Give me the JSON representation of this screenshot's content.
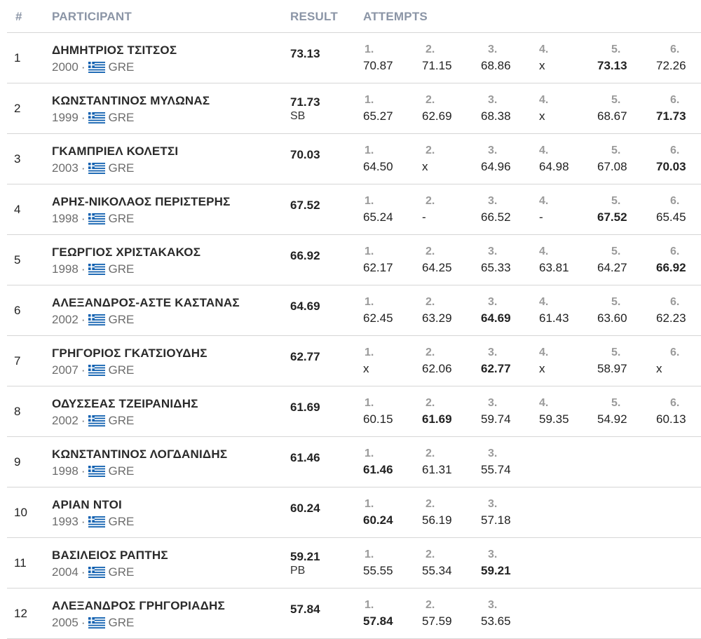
{
  "header": {
    "rank": "#",
    "participant": "PARTICIPANT",
    "result": "RESULT",
    "attempts": "ATTEMPTS"
  },
  "colors": {
    "header_text": "#8b95a6",
    "divider": "#d6d6d6",
    "flag_blue": "#0d5eaf"
  },
  "rows": [
    {
      "rank": "1",
      "name": "ΔΗΜΗΤΡΙΟΣ ΤΣΙΤΣΟΣ",
      "year": "2000",
      "sep": "·",
      "country": "GRE",
      "result": "73.13",
      "note": "",
      "attempts": [
        {
          "n": "1.",
          "v": "70.87",
          "best": false
        },
        {
          "n": "2.",
          "v": "71.15",
          "best": false
        },
        {
          "n": "3.",
          "v": "68.86",
          "best": false
        },
        {
          "n": "4.",
          "v": "x",
          "best": false
        },
        {
          "n": "5.",
          "v": "73.13",
          "best": true
        },
        {
          "n": "6.",
          "v": "72.26",
          "best": false
        }
      ]
    },
    {
      "rank": "2",
      "name": "ΚΩΝΣΤΑΝΤΙΝΟΣ ΜΥΛΩΝΑΣ",
      "year": "1999",
      "sep": "·",
      "country": "GRE",
      "result": "71.73",
      "note": "SB",
      "attempts": [
        {
          "n": "1.",
          "v": "65.27",
          "best": false
        },
        {
          "n": "2.",
          "v": "62.69",
          "best": false
        },
        {
          "n": "3.",
          "v": "68.38",
          "best": false
        },
        {
          "n": "4.",
          "v": "x",
          "best": false
        },
        {
          "n": "5.",
          "v": "68.67",
          "best": false
        },
        {
          "n": "6.",
          "v": "71.73",
          "best": true
        }
      ]
    },
    {
      "rank": "3",
      "name": "ΓΚΑΜΠΡΙΕΛ ΚΟΛΕΤΣΙ",
      "year": "2003",
      "sep": "·",
      "country": "GRE",
      "result": "70.03",
      "note": "",
      "attempts": [
        {
          "n": "1.",
          "v": "64.50",
          "best": false
        },
        {
          "n": "2.",
          "v": "x",
          "best": false
        },
        {
          "n": "3.",
          "v": "64.96",
          "best": false
        },
        {
          "n": "4.",
          "v": "64.98",
          "best": false
        },
        {
          "n": "5.",
          "v": "67.08",
          "best": false
        },
        {
          "n": "6.",
          "v": "70.03",
          "best": true
        }
      ]
    },
    {
      "rank": "4",
      "name": "ΑΡΗΣ-ΝΙΚΟΛΑΟΣ ΠΕΡΙΣΤΕΡΗΣ",
      "year": "1998",
      "sep": "·",
      "country": "GRE",
      "result": "67.52",
      "note": "",
      "attempts": [
        {
          "n": "1.",
          "v": "65.24",
          "best": false
        },
        {
          "n": "2.",
          "v": "-",
          "best": false
        },
        {
          "n": "3.",
          "v": "66.52",
          "best": false
        },
        {
          "n": "4.",
          "v": "-",
          "best": false
        },
        {
          "n": "5.",
          "v": "67.52",
          "best": true
        },
        {
          "n": "6.",
          "v": "65.45",
          "best": false
        }
      ]
    },
    {
      "rank": "5",
      "name": "ΓΕΩΡΓΙΟΣ ΧΡΙΣΤΑΚΑΚΟΣ",
      "year": "1998",
      "sep": "·",
      "country": "GRE",
      "result": "66.92",
      "note": "",
      "attempts": [
        {
          "n": "1.",
          "v": "62.17",
          "best": false
        },
        {
          "n": "2.",
          "v": "64.25",
          "best": false
        },
        {
          "n": "3.",
          "v": "65.33",
          "best": false
        },
        {
          "n": "4.",
          "v": "63.81",
          "best": false
        },
        {
          "n": "5.",
          "v": "64.27",
          "best": false
        },
        {
          "n": "6.",
          "v": "66.92",
          "best": true
        }
      ]
    },
    {
      "rank": "6",
      "name": "ΑΛΕΞΑΝΔΡΟΣ-ΑΣΤΕ ΚΑΣΤΑΝΑΣ",
      "year": "2002",
      "sep": "·",
      "country": "GRE",
      "result": "64.69",
      "note": "",
      "attempts": [
        {
          "n": "1.",
          "v": "62.45",
          "best": false
        },
        {
          "n": "2.",
          "v": "63.29",
          "best": false
        },
        {
          "n": "3.",
          "v": "64.69",
          "best": true
        },
        {
          "n": "4.",
          "v": "61.43",
          "best": false
        },
        {
          "n": "5.",
          "v": "63.60",
          "best": false
        },
        {
          "n": "6.",
          "v": "62.23",
          "best": false
        }
      ]
    },
    {
      "rank": "7",
      "name": "ΓΡΗΓΟΡΙΟΣ ΓΚΑΤΣΙΟΥΔΗΣ",
      "year": "2007",
      "sep": "·",
      "country": "GRE",
      "result": "62.77",
      "note": "",
      "attempts": [
        {
          "n": "1.",
          "v": "x",
          "best": false
        },
        {
          "n": "2.",
          "v": "62.06",
          "best": false
        },
        {
          "n": "3.",
          "v": "62.77",
          "best": true
        },
        {
          "n": "4.",
          "v": "x",
          "best": false
        },
        {
          "n": "5.",
          "v": "58.97",
          "best": false
        },
        {
          "n": "6.",
          "v": "x",
          "best": false
        }
      ]
    },
    {
      "rank": "8",
      "name": "ΟΔΥΣΣΕΑΣ ΤΖΕΙΡΑΝΙΔΗΣ",
      "year": "2002",
      "sep": "·",
      "country": "GRE",
      "result": "61.69",
      "note": "",
      "attempts": [
        {
          "n": "1.",
          "v": "60.15",
          "best": false
        },
        {
          "n": "2.",
          "v": "61.69",
          "best": true
        },
        {
          "n": "3.",
          "v": "59.74",
          "best": false
        },
        {
          "n": "4.",
          "v": "59.35",
          "best": false
        },
        {
          "n": "5.",
          "v": "54.92",
          "best": false
        },
        {
          "n": "6.",
          "v": "60.13",
          "best": false
        }
      ]
    },
    {
      "rank": "9",
      "name": "ΚΩΝΣΤΑΝΤΙΝΟΣ ΛΟΓΔΑΝΙΔΗΣ",
      "year": "1998",
      "sep": "·",
      "country": "GRE",
      "result": "61.46",
      "note": "",
      "attempts": [
        {
          "n": "1.",
          "v": "61.46",
          "best": true
        },
        {
          "n": "2.",
          "v": "61.31",
          "best": false
        },
        {
          "n": "3.",
          "v": "55.74",
          "best": false
        }
      ]
    },
    {
      "rank": "10",
      "name": "ΑΡΙΑΝ ΝΤΟΙ",
      "year": "1993",
      "sep": "·",
      "country": "GRE",
      "result": "60.24",
      "note": "",
      "attempts": [
        {
          "n": "1.",
          "v": "60.24",
          "best": true
        },
        {
          "n": "2.",
          "v": "56.19",
          "best": false
        },
        {
          "n": "3.",
          "v": "57.18",
          "best": false
        }
      ]
    },
    {
      "rank": "11",
      "name": "ΒΑΣΙΛΕΙΟΣ ΡΑΠΤΗΣ",
      "year": "2004",
      "sep": "·",
      "country": "GRE",
      "result": "59.21",
      "note": "PB",
      "attempts": [
        {
          "n": "1.",
          "v": "55.55",
          "best": false
        },
        {
          "n": "2.",
          "v": "55.34",
          "best": false
        },
        {
          "n": "3.",
          "v": "59.21",
          "best": true
        }
      ]
    },
    {
      "rank": "12",
      "name": "ΑΛΕΞΑΝΔΡΟΣ ΓΡΗΓΟΡΙΑΔΗΣ",
      "year": "2005",
      "sep": "·",
      "country": "GRE",
      "result": "57.84",
      "note": "",
      "attempts": [
        {
          "n": "1.",
          "v": "57.84",
          "best": true
        },
        {
          "n": "2.",
          "v": "57.59",
          "best": false
        },
        {
          "n": "3.",
          "v": "53.65",
          "best": false
        }
      ]
    }
  ]
}
